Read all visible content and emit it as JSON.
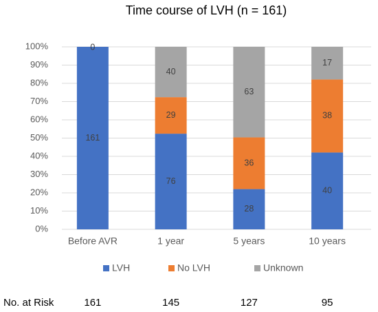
{
  "chart_data": {
    "type": "bar",
    "stacked": "percent",
    "title": "Time course of LVH  (n = 161)",
    "categories": [
      "Before AVR",
      "1 year",
      "5 years",
      "10 years"
    ],
    "series": [
      {
        "name": "LVH",
        "color": "#4472c4",
        "values": [
          161,
          76,
          28,
          40
        ]
      },
      {
        "name": "No LVH",
        "color": "#ed7d31",
        "values": [
          null,
          29,
          36,
          38
        ]
      },
      {
        "name": "Unknown",
        "color": "#a5a5a5",
        "values": [
          0,
          40,
          63,
          17
        ]
      }
    ],
    "ylim": [
      0,
      100
    ],
    "yticks": [
      {
        "value": 0,
        "label": "0%"
      },
      {
        "value": 10,
        "label": "10%"
      },
      {
        "value": 20,
        "label": "20%"
      },
      {
        "value": 30,
        "label": "30%"
      },
      {
        "value": 40,
        "label": "40%"
      },
      {
        "value": 50,
        "label": "50%"
      },
      {
        "value": 60,
        "label": "60%"
      },
      {
        "value": 70,
        "label": "70%"
      },
      {
        "value": 80,
        "label": "80%"
      },
      {
        "value": 90,
        "label": "90%"
      },
      {
        "value": 100,
        "label": "100%"
      }
    ],
    "grid": true,
    "legend": "bottom",
    "risk_table": {
      "label": "No. at Risk",
      "values": [
        161,
        145,
        127,
        95
      ]
    }
  }
}
